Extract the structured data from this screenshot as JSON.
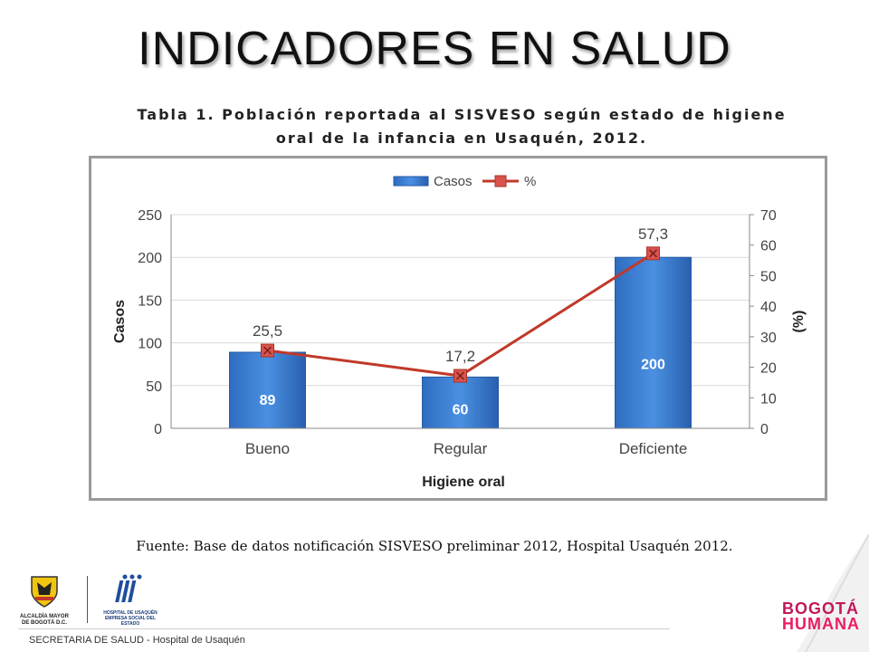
{
  "slide": {
    "title": "INDICADORES EN SALUD",
    "table_title_line1": "Tabla 1. Población reportada al SISVESO según estado de higiene",
    "table_title_line2": "oral de la infancia en Usaquén, 2012.",
    "source": "Fuente: Base de datos notificación SISVESO preliminar 2012, Hospital Usaquén 2012.",
    "footer": "SECRETARIA DE SALUD - Hospital de Usaquén",
    "logos": {
      "alcaldia_line1": "ALCALDÍA MAYOR",
      "alcaldia_line2": "DE BOGOTÁ D.C.",
      "hospital_line1": "HOSPITAL DE USAQUÉN",
      "hospital_line2": "EMPRESA SOCIAL DEL ESTADO",
      "bogota_line1": "BOGOTÁ",
      "bogota_line2": "HUMANA"
    }
  },
  "chart_data": {
    "type": "bar",
    "categories": [
      "Bueno",
      "Regular",
      "Deficiente"
    ],
    "series": [
      {
        "name": "Casos",
        "type": "bar",
        "axis": "left",
        "values": [
          89,
          60,
          200
        ],
        "value_labels": [
          "89",
          "60",
          "200"
        ],
        "color": "#3a7fd5"
      },
      {
        "name": "%",
        "type": "line",
        "axis": "right",
        "values": [
          25.5,
          17.2,
          57.3
        ],
        "value_labels": [
          "25,5",
          "17,2",
          "57,3"
        ],
        "color": "#c0392b"
      }
    ],
    "xlabel": "Higiene oral",
    "ylabel": "Casos",
    "y2label": "(%)",
    "ylim": [
      0,
      250
    ],
    "yticks": [
      0,
      50,
      100,
      150,
      200,
      250
    ],
    "y2lim": [
      0,
      70
    ],
    "y2ticks": [
      0,
      10,
      20,
      30,
      40,
      50,
      60,
      70
    ],
    "grid": true,
    "legend": "top-center"
  }
}
